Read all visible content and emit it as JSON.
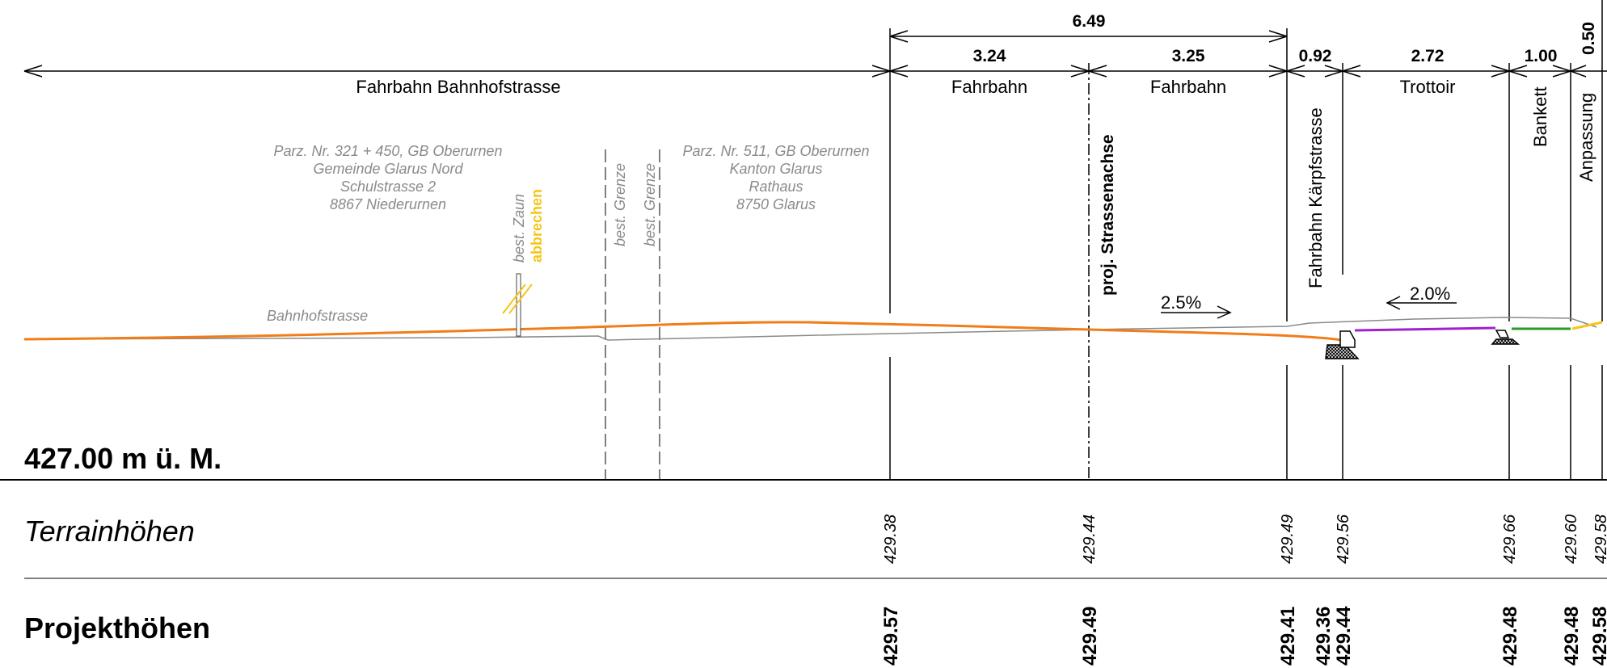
{
  "dimensions": {
    "total": "6.49",
    "fahrbahn_left": "3.24",
    "fahrbahn_right": "3.25",
    "kaerpf": "0.92",
    "trottoir": "2.72",
    "bankett": "1.00",
    "anpassung": "0.50"
  },
  "zones": {
    "bahnhofstrasse": "Fahrbahn Bahnhofstrasse",
    "fahrbahn_left": "Fahrbahn",
    "fahrbahn_right": "Fahrbahn",
    "kaerpf": "Fahrbahn Kärpfstrasse",
    "trottoir": "Trottoir",
    "bankett": "Bankett",
    "anpassung": "Anpassung"
  },
  "axis_label": "proj. Strassenachse",
  "parcel_left": [
    "Parz. Nr. 321 + 450, GB Oberurnen",
    "Gemeinde Glarus Nord",
    "Schulstrasse 2",
    "8867 Niederurnen"
  ],
  "parcel_right": [
    "Parz. Nr. 511, GB Oberurnen",
    "Kanton Glarus",
    "Rathaus",
    "8750 Glarus"
  ],
  "fence": {
    "label": "best. Zaun",
    "action": "abbrechen",
    "action_color": "#f5c518"
  },
  "boundary_label": "best. Grenze",
  "street_label": "Bahnhofstrasse",
  "slopes": {
    "left": "2.5%",
    "right": "2.0%"
  },
  "reference_level": "427.00 m ü. M.",
  "rows": {
    "terrain": "Terrainhöhen",
    "project": "Projekthöhen"
  },
  "terrain_heights": [
    "429.38",
    "429.44",
    "429.49",
    "429.56",
    "429.66",
    "429.60",
    "429.58"
  ],
  "project_heights": [
    "429.57",
    "429.49",
    "429.41",
    "429.36",
    "429.44",
    "429.48",
    "429.48",
    "429.58"
  ],
  "colors": {
    "project_line": "#f07d1a",
    "existing_line": "#8a8a8a",
    "trottoir_line": "#a020d0",
    "bankett_line": "#2a9a2a",
    "anpassung_line": "#f5c518"
  }
}
